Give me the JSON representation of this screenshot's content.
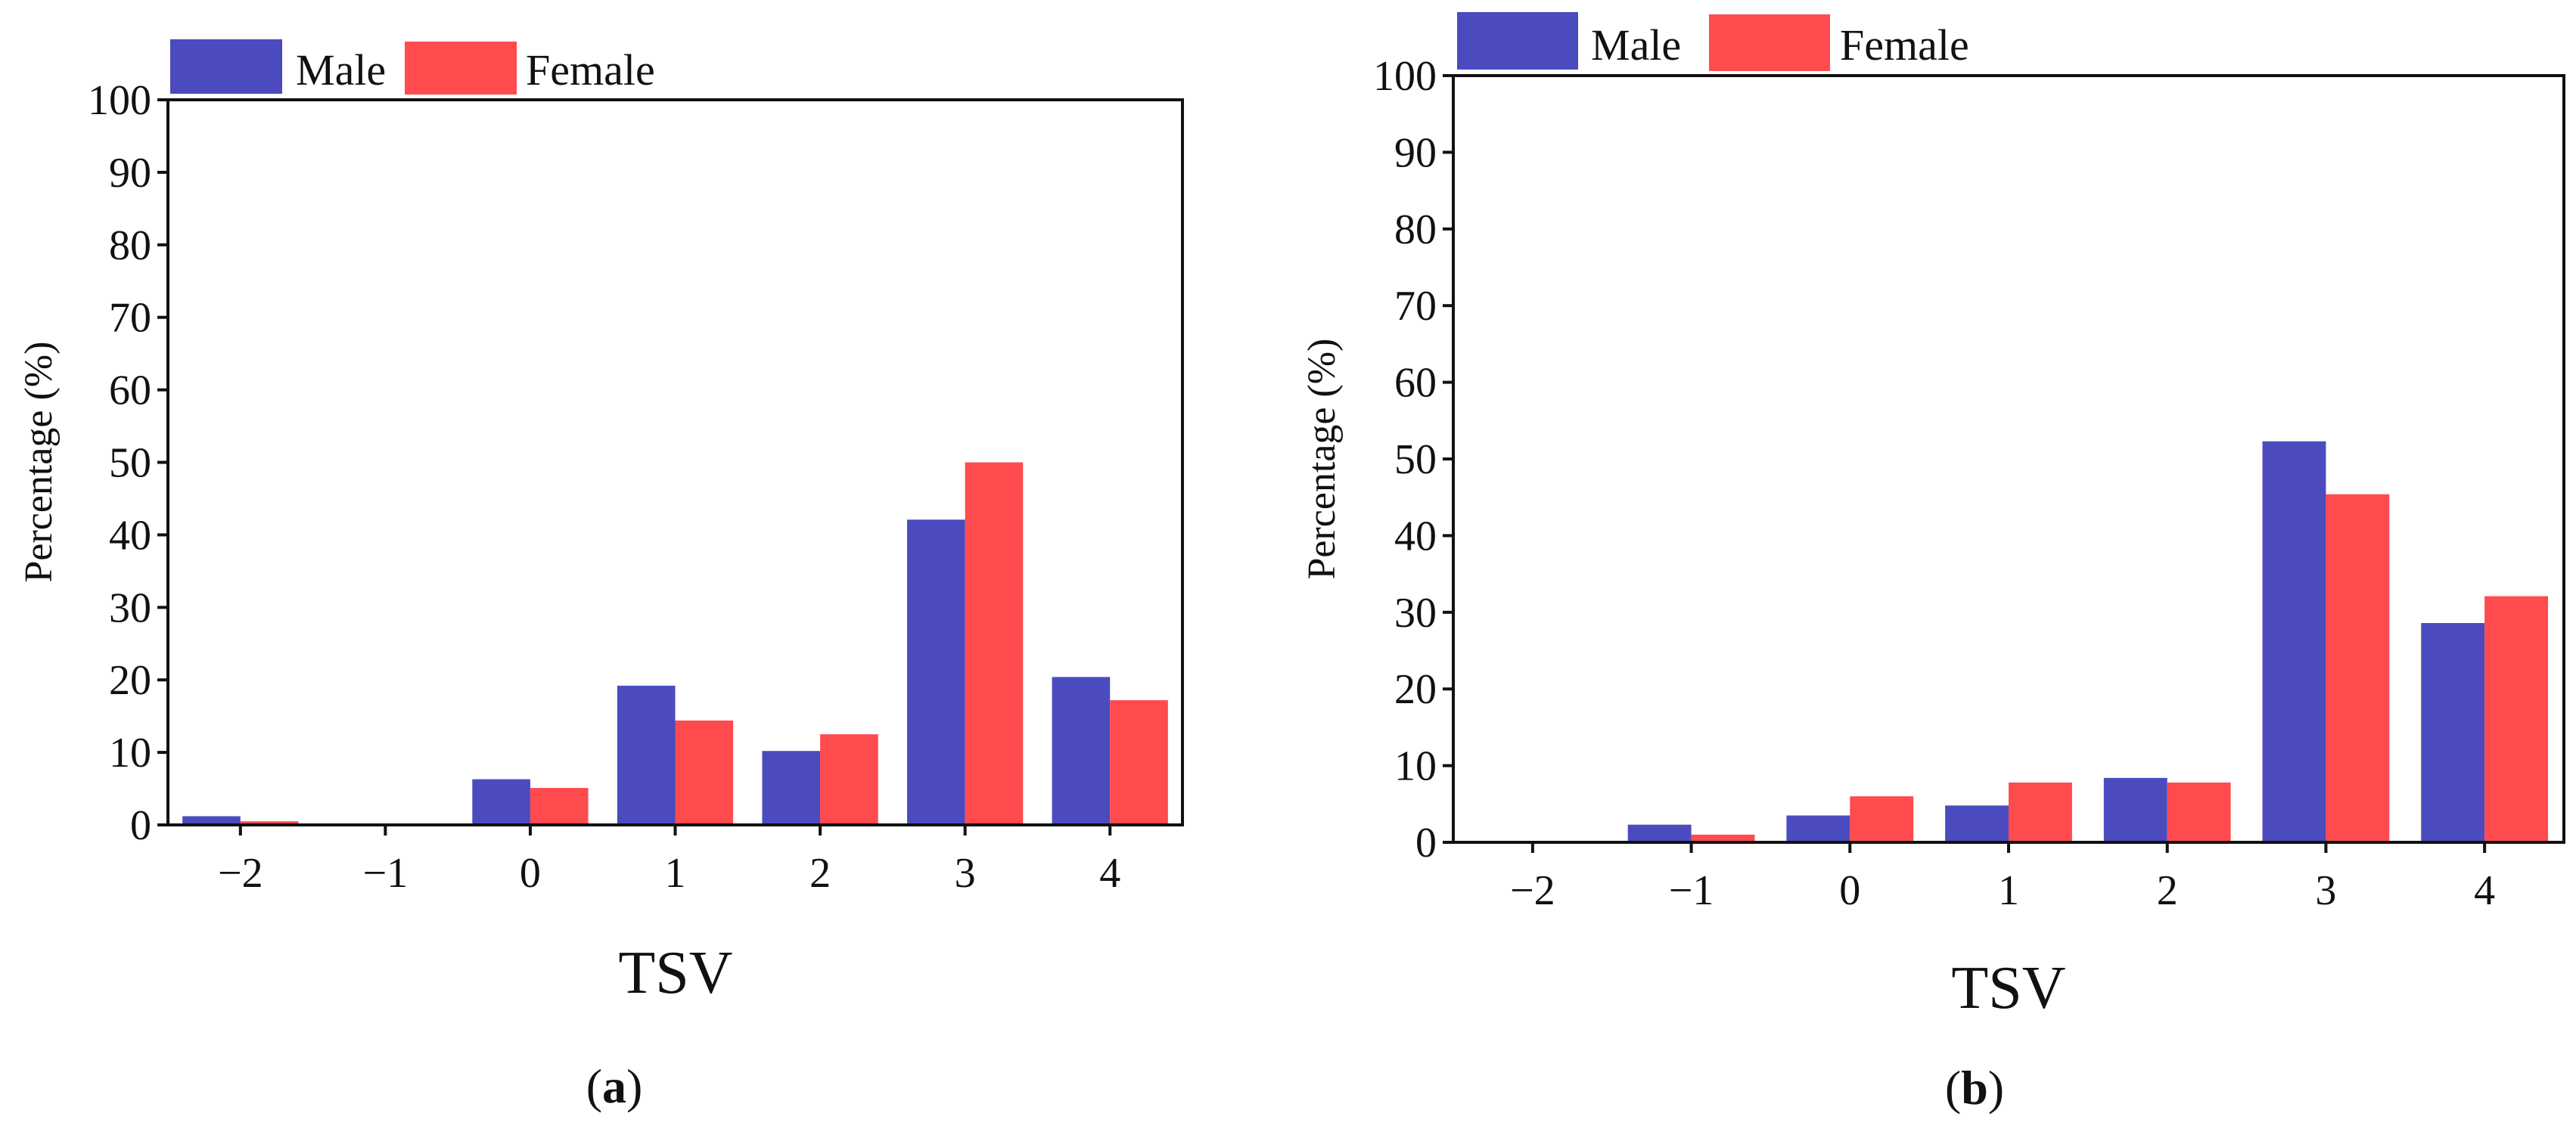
{
  "chart_data": [
    {
      "type": "bar",
      "panel_label": "a",
      "title": "",
      "xlabel": "TSV",
      "ylabel": "Percentage (%)",
      "categories": [
        "−2",
        "−1",
        "0",
        "1",
        "2",
        "3",
        "4"
      ],
      "ylim": [
        0,
        100
      ],
      "yticks": [
        0,
        10,
        20,
        30,
        40,
        50,
        60,
        70,
        80,
        90,
        100
      ],
      "legend_position": "top-left",
      "grid": false,
      "series": [
        {
          "name": "Male",
          "color": "#4b4bbf",
          "values": [
            1.2,
            0,
            6.3,
            19.2,
            10.2,
            42.1,
            20.4
          ]
        },
        {
          "name": "Female",
          "color": "#ff4b4e",
          "values": [
            0.5,
            0,
            5.1,
            14.4,
            12.5,
            50.0,
            17.2
          ]
        }
      ]
    },
    {
      "type": "bar",
      "panel_label": "b",
      "title": "",
      "xlabel": "TSV",
      "ylabel": "Percentage (%)",
      "categories": [
        "−2",
        "−1",
        "0",
        "1",
        "2",
        "3",
        "4"
      ],
      "ylim": [
        0,
        100
      ],
      "yticks": [
        0,
        10,
        20,
        30,
        40,
        50,
        60,
        70,
        80,
        90,
        100
      ],
      "legend_position": "top-left",
      "grid": false,
      "series": [
        {
          "name": "Male",
          "color": "#4b4bbf",
          "values": [
            0,
            2.3,
            3.5,
            4.8,
            8.4,
            52.3,
            28.6
          ]
        },
        {
          "name": "Female",
          "color": "#ff4b4e",
          "values": [
            0,
            1.0,
            6.0,
            7.8,
            7.8,
            45.4,
            32.1
          ]
        }
      ]
    }
  ]
}
